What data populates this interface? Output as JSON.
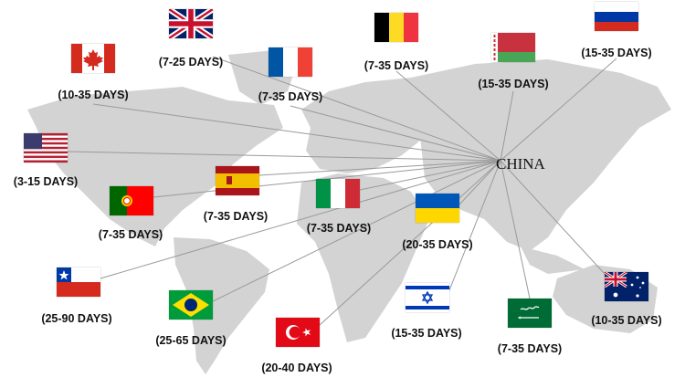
{
  "hub": {
    "label": "CHINA"
  },
  "line_color": "#9a9a9a",
  "map_color": "#d3d3d3",
  "destinations": [
    {
      "flag": "uk-flag",
      "days": "(7-25 DAYS)"
    },
    {
      "flag": "canada-flag",
      "days": "(10-35 DAYS)"
    },
    {
      "flag": "france-flag",
      "days": "(7-35 DAYS)"
    },
    {
      "flag": "belgium-flag",
      "days": "(7-35 DAYS)"
    },
    {
      "flag": "belarus-flag",
      "days": "(15-35 DAYS)"
    },
    {
      "flag": "russia-flag",
      "days": "(15-35 DAYS)"
    },
    {
      "flag": "usa-flag",
      "days": "(3-15 DAYS)"
    },
    {
      "flag": "spain-flag",
      "days": "(7-35 DAYS)"
    },
    {
      "flag": "portugal-flag",
      "days": "(7-35 DAYS)"
    },
    {
      "flag": "italy-flag",
      "days": "(7-35 DAYS)"
    },
    {
      "flag": "ukraine-flag",
      "days": "(20-35 DAYS)"
    },
    {
      "flag": "chile-flag",
      "days": "(25-90 DAYS)"
    },
    {
      "flag": "brazil-flag",
      "days": "(25-65 DAYS)"
    },
    {
      "flag": "turkey-flag",
      "days": "(20-40 DAYS)"
    },
    {
      "flag": "israel-flag",
      "days": "(15-35 DAYS)"
    },
    {
      "flag": "saudi-arabia-flag",
      "days": "(7-35 DAYS)"
    },
    {
      "flag": "australia-flag",
      "days": "(10-35 DAYS)"
    }
  ]
}
